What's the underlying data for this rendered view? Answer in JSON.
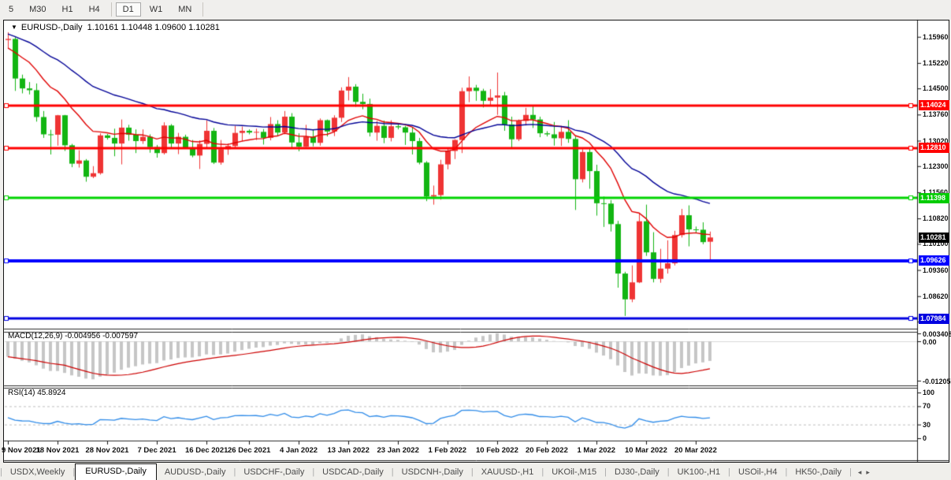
{
  "toolbar": {
    "timeframes": [
      {
        "label": "5",
        "active": false
      },
      {
        "label": "M30",
        "active": false
      },
      {
        "label": "H1",
        "active": false
      },
      {
        "label": "H4",
        "active": false
      },
      {
        "label": "D1",
        "active": true
      },
      {
        "label": "W1",
        "active": false
      },
      {
        "label": "MN",
        "active": false
      }
    ]
  },
  "chart": {
    "symbol_label": "EURUSD-,Daily",
    "ohlc": "1.10161 1.10448 1.09600 1.10281",
    "collapse_icon": "▼"
  },
  "macd_panel": {
    "label": "MACD(12,26,9) -0.004956 -0.007597",
    "axis_labels": [
      "0.003408",
      "0.00",
      "-0.01205"
    ],
    "axis_values": [
      0.003408,
      0,
      -0.01205
    ]
  },
  "rsi_panel": {
    "label": "RSI(14) 45.8924",
    "axis_labels": [
      "100",
      "70",
      "30",
      "0"
    ],
    "axis_values": [
      100,
      70,
      30,
      0
    ]
  },
  "price_axis": {
    "tick_labels": [
      "1.15960",
      "1.15220",
      "1.14500",
      "1.13760",
      "1.13020",
      "1.12300",
      "1.11560",
      "1.10820",
      "1.10100",
      "1.09360",
      "1.08620",
      "1.07900"
    ],
    "badges": [
      {
        "label": "1.14024",
        "price": 1.14024,
        "bg": "#ff0000"
      },
      {
        "label": "1.12810",
        "price": 1.1281,
        "bg": "#ff0000"
      },
      {
        "label": "1.11398",
        "price": 1.11398,
        "bg": "#00cc00"
      },
      {
        "label": "1.10281",
        "price": 1.10281,
        "bg": "#000000"
      },
      {
        "label": "1.09626",
        "price": 1.09626,
        "bg": "#0000ff"
      },
      {
        "label": "1.07984",
        "price": 1.07984,
        "bg": "#0000e0"
      }
    ]
  },
  "tabs": {
    "items": [
      {
        "label": "USDX,Weekly",
        "active": false
      },
      {
        "label": "EURUSD-,Daily",
        "active": true
      },
      {
        "label": "AUDUSD-,Daily",
        "active": false
      },
      {
        "label": "USDCHF-,Daily",
        "active": false
      },
      {
        "label": "USDCAD-,Daily",
        "active": false
      },
      {
        "label": "USDCNH-,Daily",
        "active": false
      },
      {
        "label": "XAUUSD-,H1",
        "active": false
      },
      {
        "label": "UKOil-,M15",
        "active": false
      },
      {
        "label": "DJ30-,Daily",
        "active": false
      },
      {
        "label": "UK100-,H1",
        "active": false
      },
      {
        "label": "USOil-,H4",
        "active": false
      },
      {
        "label": "HK50-,Daily",
        "active": false
      }
    ],
    "scroll_left_icon": "◂",
    "scroll_right_icon": "▸"
  },
  "chart_data": {
    "type": "candlestick",
    "symbol": "EURUSD-",
    "timeframe": "Daily",
    "ylim": [
      1.077,
      1.164
    ],
    "bull_color": "#ef3434",
    "bear_color": "#12b512",
    "dates": [
      "2021-11-09",
      "2021-11-10",
      "2021-11-11",
      "2021-11-12",
      "2021-11-15",
      "2021-11-16",
      "2021-11-17",
      "2021-11-18",
      "2021-11-19",
      "2021-11-22",
      "2021-11-23",
      "2021-11-24",
      "2021-11-25",
      "2021-11-26",
      "2021-11-28",
      "2021-11-29",
      "2021-11-30",
      "2021-12-01",
      "2021-12-02",
      "2021-12-03",
      "2021-12-06",
      "2021-12-07",
      "2021-12-08",
      "2021-12-09",
      "2021-12-10",
      "2021-12-13",
      "2021-12-14",
      "2021-12-15",
      "2021-12-16",
      "2021-12-17",
      "2021-12-20",
      "2021-12-21",
      "2021-12-22",
      "2021-12-23",
      "2021-12-26",
      "2021-12-27",
      "2021-12-28",
      "2021-12-29",
      "2021-12-30",
      "2021-12-31",
      "2022-01-03",
      "2022-01-04",
      "2022-01-05",
      "2022-01-06",
      "2022-01-07",
      "2022-01-10",
      "2022-01-11",
      "2022-01-12",
      "2022-01-13",
      "2022-01-14",
      "2022-01-17",
      "2022-01-18",
      "2022-01-19",
      "2022-01-20",
      "2022-01-21",
      "2022-01-23",
      "2022-01-24",
      "2022-01-25",
      "2022-01-26",
      "2022-01-27",
      "2022-01-28",
      "2022-01-31",
      "2022-02-01",
      "2022-02-02",
      "2022-02-03",
      "2022-02-04",
      "2022-02-07",
      "2022-02-08",
      "2022-02-09",
      "2022-02-10",
      "2022-02-11",
      "2022-02-14",
      "2022-02-15",
      "2022-02-16",
      "2022-02-17",
      "2022-02-18",
      "2022-02-20",
      "2022-02-21",
      "2022-02-22",
      "2022-02-23",
      "2022-02-24",
      "2022-02-25",
      "2022-02-28",
      "2022-03-01",
      "2022-03-02",
      "2022-03-03",
      "2022-03-04",
      "2022-03-07",
      "2022-03-08",
      "2022-03-09",
      "2022-03-10",
      "2022-03-11",
      "2022-03-14",
      "2022-03-15",
      "2022-03-16",
      "2022-03-17",
      "2022-03-18",
      "2022-03-20",
      "2022-03-21",
      "2022-03-22"
    ],
    "open": [
      1.1587,
      1.159,
      1.1478,
      1.145,
      1.1445,
      1.1369,
      1.132,
      1.1319,
      1.1374,
      1.1289,
      1.1237,
      1.1246,
      1.12,
      1.121,
      1.1317,
      1.131,
      1.1294,
      1.1339,
      1.1319,
      1.1301,
      1.1313,
      1.1284,
      1.1267,
      1.1345,
      1.1294,
      1.1313,
      1.1283,
      1.126,
      1.1293,
      1.133,
      1.124,
      1.1278,
      1.1287,
      1.1324,
      1.133,
      1.1325,
      1.1327,
      1.131,
      1.1349,
      1.1325,
      1.137,
      1.1297,
      1.1285,
      1.1313,
      1.1296,
      1.136,
      1.1328,
      1.1367,
      1.1444,
      1.1455,
      1.1412,
      1.1406,
      1.1325,
      1.1344,
      1.131,
      1.1343,
      1.134,
      1.1325,
      1.1301,
      1.124,
      1.1144,
      1.1148,
      1.1235,
      1.1273,
      1.1304,
      1.1442,
      1.1452,
      1.1443,
      1.1415,
      1.1424,
      1.143,
      1.1348,
      1.1306,
      1.1358,
      1.1375,
      1.1362,
      1.1323,
      1.132,
      1.1309,
      1.1327,
      1.1307,
      1.1193,
      1.127,
      1.1216,
      1.1125,
      1.1124,
      1.1066,
      1.0926,
      1.0853,
      1.0901,
      1.1074,
      1.0986,
      1.0911,
      1.094,
      1.0955,
      1.1035,
      1.1091,
      1.1051,
      1.105,
      1.10161
    ],
    "high": [
      1.1609,
      1.1595,
      1.1489,
      1.1468,
      1.1464,
      1.1386,
      1.1333,
      1.1375,
      1.1375,
      1.1293,
      1.1275,
      1.125,
      1.123,
      1.1323,
      1.1321,
      1.1336,
      1.1362,
      1.1347,
      1.1334,
      1.1334,
      1.132,
      1.129,
      1.1354,
      1.1349,
      1.1324,
      1.1319,
      1.1304,
      1.1303,
      1.136,
      1.1338,
      1.1304,
      1.1294,
      1.1344,
      1.1342,
      1.1334,
      1.1336,
      1.1335,
      1.1369,
      1.136,
      1.1386,
      1.138,
      1.1323,
      1.1347,
      1.1333,
      1.1365,
      1.1362,
      1.1374,
      1.1453,
      1.1482,
      1.1462,
      1.1435,
      1.1421,
      1.1358,
      1.1359,
      1.136,
      1.1349,
      1.1344,
      1.1339,
      1.131,
      1.1244,
      1.1175,
      1.1248,
      1.1279,
      1.1306,
      1.1452,
      1.1484,
      1.146,
      1.1449,
      1.1448,
      1.1495,
      1.144,
      1.137,
      1.1362,
      1.1395,
      1.1399,
      1.137,
      1.1329,
      1.1355,
      1.1344,
      1.136,
      1.1314,
      1.1278,
      1.1281,
      1.1234,
      1.1144,
      1.1134,
      1.1075,
      1.0931,
      1.0949,
      1.1098,
      1.1121,
      1.1043,
      1.0996,
      1.102,
      1.1047,
      1.1109,
      1.1119,
      1.1059,
      1.1071,
      1.10448
    ],
    "low": [
      1.1564,
      1.1443,
      1.1436,
      1.1433,
      1.1356,
      1.131,
      1.1263,
      1.1288,
      1.1273,
      1.1227,
      1.1226,
      1.1186,
      1.1196,
      1.1206,
      1.1305,
      1.1258,
      1.1235,
      1.1302,
      1.1267,
      1.1293,
      1.1268,
      1.1254,
      1.1263,
      1.1281,
      1.1264,
      1.1279,
      1.1255,
      1.1222,
      1.1282,
      1.1236,
      1.1234,
      1.1262,
      1.1283,
      1.13,
      1.132,
      1.1304,
      1.1291,
      1.1303,
      1.1315,
      1.132,
      1.1279,
      1.1272,
      1.1284,
      1.1286,
      1.1288,
      1.1314,
      1.1315,
      1.1355,
      1.1416,
      1.1398,
      1.1391,
      1.1314,
      1.1302,
      1.1295,
      1.13,
      1.1334,
      1.129,
      1.1263,
      1.1235,
      1.1131,
      1.1121,
      1.1135,
      1.1221,
      1.125,
      1.1267,
      1.1411,
      1.1415,
      1.1396,
      1.1402,
      1.1375,
      1.133,
      1.128,
      1.1301,
      1.1345,
      1.1338,
      1.1312,
      1.1314,
      1.1288,
      1.1287,
      1.1296,
      1.1106,
      1.1184,
      1.1166,
      1.109,
      1.1058,
      1.1045,
      1.0886,
      1.0806,
      1.0845,
      1.0899,
      1.0976,
      1.0901,
      1.09,
      1.0926,
      1.0949,
      1.1028,
      1.1003,
      1.1041,
      1.1009,
      1.096
    ],
    "close": [
      1.159,
      1.1478,
      1.145,
      1.1445,
      1.1369,
      1.132,
      1.1319,
      1.1374,
      1.1289,
      1.1237,
      1.1246,
      1.12,
      1.121,
      1.1317,
      1.131,
      1.1294,
      1.1339,
      1.1319,
      1.1301,
      1.1313,
      1.1284,
      1.1267,
      1.1345,
      1.1294,
      1.1313,
      1.1283,
      1.126,
      1.1293,
      1.133,
      1.124,
      1.1278,
      1.1287,
      1.1324,
      1.133,
      1.1325,
      1.1327,
      1.131,
      1.1349,
      1.1325,
      1.137,
      1.1297,
      1.1285,
      1.1313,
      1.1296,
      1.136,
      1.1328,
      1.1367,
      1.1444,
      1.1455,
      1.1412,
      1.1406,
      1.1325,
      1.1344,
      1.131,
      1.1343,
      1.134,
      1.1325,
      1.1301,
      1.124,
      1.1144,
      1.1148,
      1.1235,
      1.1273,
      1.1304,
      1.1442,
      1.1452,
      1.1443,
      1.1415,
      1.1424,
      1.143,
      1.1348,
      1.1306,
      1.1358,
      1.1375,
      1.1362,
      1.1323,
      1.132,
      1.1309,
      1.1327,
      1.1307,
      1.1193,
      1.127,
      1.1216,
      1.1125,
      1.1124,
      1.1066,
      1.0926,
      1.0853,
      1.0901,
      1.1074,
      1.0986,
      1.0911,
      1.094,
      1.0955,
      1.1035,
      1.1091,
      1.1051,
      1.105,
      1.1015,
      1.10281
    ],
    "x_ticks": {
      "indices": [
        0,
        7,
        14,
        21,
        28,
        34,
        41,
        48,
        55,
        62,
        69,
        76,
        83,
        90,
        97
      ],
      "labels": [
        "9 Nov 2021",
        "18 Nov 2021",
        "28 Nov 2021",
        "7 Dec 2021",
        "16 Dec 2021",
        "26 Dec 2021",
        "4 Jan 2022",
        "13 Jan 2022",
        "23 Jan 2022",
        "1 Feb 2022",
        "10 Feb 2022",
        "20 Feb 2022",
        "1 Mar 2022",
        "10 Mar 2022",
        "20 Mar 2022"
      ]
    },
    "moving_averages": [
      {
        "type": "ema",
        "period": 13,
        "seed": 1.156,
        "color": "#e00000"
      },
      {
        "type": "ema",
        "period": 34,
        "seed": 1.1605,
        "color": "#000096"
      }
    ],
    "horizontal_lines": [
      {
        "price": 1.14024,
        "color": "#ff0000",
        "width": 3
      },
      {
        "price": 1.1281,
        "color": "#ff0000",
        "width": 3
      },
      {
        "price": 1.11398,
        "color": "#00d400",
        "width": 3
      },
      {
        "price": 1.09626,
        "color": "#0000ff",
        "width": 4
      },
      {
        "price": 1.07984,
        "color": "#0000e0",
        "width": 3
      }
    ],
    "indicators": {
      "macd": {
        "fast": 12,
        "slow": 26,
        "signal": 9,
        "fast_seed": 1.16,
        "slow_seed": 1.165,
        "hist_color": "#c6c6c6",
        "signal_color": "#cc0000",
        "value": -0.004956,
        "signal_value": -0.007597
      },
      "rsi": {
        "period": 14,
        "avg_gain_seed": 0.0028,
        "avg_loss_seed": 0.0034,
        "color": "#2f8be8",
        "levels": [
          70,
          30
        ],
        "value": 45.8924
      }
    }
  }
}
